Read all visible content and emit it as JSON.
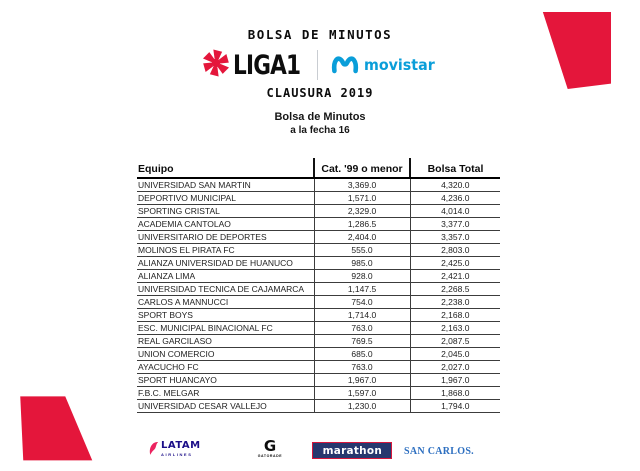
{
  "header": {
    "main_title": "BOLSA DE MINUTOS",
    "liga1_text": "LIGA1",
    "movistar_text": "movistar",
    "season_title": "CLAUSURA 2019",
    "subtitle": "Bolsa de Minutos",
    "subtitle2": "a la fecha 16"
  },
  "table": {
    "columns": [
      "Equipo",
      "Cat. '99 o menor",
      "Bolsa Total"
    ],
    "rows": [
      {
        "equipo": "UNIVERSIDAD SAN MARTIN",
        "cat99": "3,369.0",
        "bolsa": "4,320.0"
      },
      {
        "equipo": "DEPORTIVO MUNICIPAL",
        "cat99": "1,571.0",
        "bolsa": "4,236.0"
      },
      {
        "equipo": "SPORTING CRISTAL",
        "cat99": "2,329.0",
        "bolsa": "4,014.0"
      },
      {
        "equipo": "ACADEMIA CANTOLAO",
        "cat99": "1,286.5",
        "bolsa": "3,377.0"
      },
      {
        "equipo": "UNIVERSITARIO DE DEPORTES",
        "cat99": "2,404.0",
        "bolsa": "3,357.0"
      },
      {
        "equipo": "MOLINOS EL PIRATA FC",
        "cat99": "555.0",
        "bolsa": "2,803.0"
      },
      {
        "equipo": "ALIANZA UNIVERSIDAD DE HUANUCO",
        "cat99": "985.0",
        "bolsa": "2,425.0"
      },
      {
        "equipo": "ALIANZA LIMA",
        "cat99": "928.0",
        "bolsa": "2,421.0"
      },
      {
        "equipo": "UNIVERSIDAD TECNICA DE CAJAMARCA",
        "cat99": "1,147.5",
        "bolsa": "2,268.5"
      },
      {
        "equipo": "CARLOS A MANNUCCI",
        "cat99": "754.0",
        "bolsa": "2,238.0"
      },
      {
        "equipo": "SPORT BOYS",
        "cat99": "1,714.0",
        "bolsa": "2,168.0"
      },
      {
        "equipo": "ESC. MUNICIPAL BINACIONAL FC",
        "cat99": "763.0",
        "bolsa": "2,163.0"
      },
      {
        "equipo": "REAL GARCILASO",
        "cat99": "769.5",
        "bolsa": "2,087.5"
      },
      {
        "equipo": "UNION COMERCIO",
        "cat99": "685.0",
        "bolsa": "2,045.0"
      },
      {
        "equipo": "AYACUCHO FC",
        "cat99": "763.0",
        "bolsa": "2,027.0"
      },
      {
        "equipo": "SPORT HUANCAYO",
        "cat99": "1,967.0",
        "bolsa": "1,967.0"
      },
      {
        "equipo": "F.B.C. MELGAR",
        "cat99": "1,597.0",
        "bolsa": "1,868.0"
      },
      {
        "equipo": "UNIVERSIDAD CESAR VALLEJO",
        "cat99": "1,230.0",
        "bolsa": "1,794.0"
      }
    ]
  },
  "sponsors": {
    "latam": {
      "name": "LATAM",
      "sub": "AIRLINES"
    },
    "g_brand": {
      "letter": "G",
      "sub": "GATORADE"
    },
    "marathon": {
      "name": "marathon"
    },
    "san_carlos": {
      "name": "SAN CARLOS."
    }
  },
  "colors": {
    "accent_red": "#e4163b",
    "movistar_blue": "#0a9ed9",
    "latam_indigo": "#1b0e88",
    "latam_coral": "#ec2360",
    "marathon_navy": "#27386e",
    "marathon_red": "#d6173c",
    "san_carlos_blue": "#2d6fc0"
  }
}
